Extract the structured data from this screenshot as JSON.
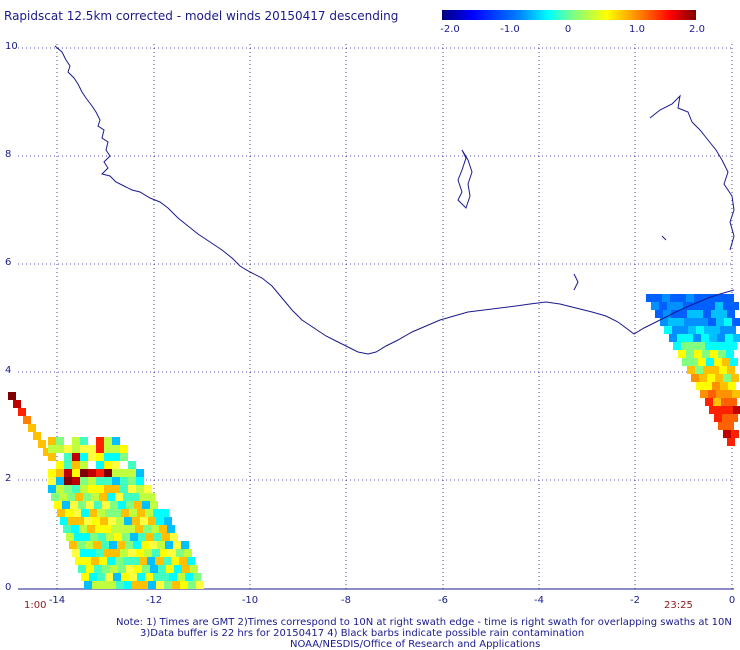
{
  "title": "Rapidscat 12.5km corrected - model winds 20150417 descending",
  "colorbar": {
    "ticks": [
      "-2.0",
      "-1.0",
      "0",
      "1.0",
      "2.0"
    ],
    "colors": [
      "#00007f",
      "#0000ff",
      "#0080ff",
      "#00ffff",
      "#80ff80",
      "#ffff00",
      "#ff8000",
      "#ff0000",
      "#7f0000"
    ]
  },
  "axes": {
    "x_ticks": [
      "-14",
      "-12",
      "-10",
      "-8",
      "-6",
      "-4",
      "-2",
      "0"
    ],
    "y_ticks": [
      "0",
      "2",
      "4",
      "6",
      "8",
      "10"
    ],
    "grid": true,
    "grid_style": "dotted"
  },
  "time_labels": {
    "left": "1:00",
    "right": "23:25"
  },
  "notes": [
    "Note: 1) Times are GMT 2)Times correspond to 10N at right swath edge - time is right swath for overlapping swaths at 10N",
    "3)Data buffer is 22 hrs for 20150417 4) Black barbs indicate possible rain contamination",
    "NOAA/NESDIS/Office of Research and Applications"
  ],
  "swaths": {
    "left_colors": [
      "#7f0000",
      "#c00000",
      "#ff2000",
      "#ff8000",
      "#ffc000",
      "#ffff00",
      "#ffff40",
      "#c0ff40",
      "#80ff80",
      "#40ffc0",
      "#00ffff",
      "#00c0ff"
    ],
    "right_colors": [
      "#0060ff",
      "#0090ff",
      "#00c0ff",
      "#00ffff",
      "#80ff80",
      "#ffff00",
      "#ffc000",
      "#ff9000",
      "#ff6000",
      "#ff2000",
      "#c00000",
      "#7f0000"
    ]
  }
}
